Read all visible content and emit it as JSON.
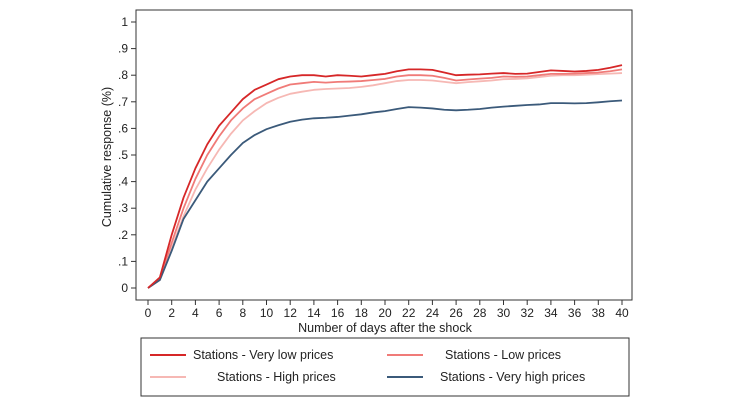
{
  "chart_data": {
    "type": "line",
    "xlabel": "Number of days after the shock",
    "ylabel": "Cumulative response (%)",
    "xlim": [
      0,
      40
    ],
    "ylim": [
      0,
      1
    ],
    "x_ticks": [
      0,
      2,
      4,
      6,
      8,
      10,
      12,
      14,
      16,
      18,
      20,
      22,
      24,
      26,
      28,
      30,
      32,
      34,
      36,
      38,
      40
    ],
    "y_ticks": [
      0,
      0.1,
      0.2,
      0.3,
      0.4,
      0.5,
      0.6,
      0.7,
      0.8,
      0.9,
      1
    ],
    "y_tick_labels": [
      "0",
      ".1",
      ".2",
      ".3",
      ".4",
      ".5",
      ".6",
      ".7",
      ".8",
      ".9",
      "1"
    ],
    "grid": false,
    "legend_position": "bottom",
    "x": [
      0,
      1,
      2,
      3,
      4,
      5,
      6,
      7,
      8,
      9,
      10,
      11,
      12,
      13,
      14,
      15,
      16,
      17,
      18,
      19,
      20,
      21,
      22,
      23,
      24,
      25,
      26,
      27,
      28,
      29,
      30,
      31,
      32,
      33,
      34,
      35,
      36,
      37,
      38,
      39,
      40
    ],
    "series": [
      {
        "name": "Stations - Very low prices",
        "color": "#d62728",
        "values": [
          0.0,
          0.04,
          0.2,
          0.34,
          0.45,
          0.54,
          0.61,
          0.66,
          0.71,
          0.745,
          0.765,
          0.785,
          0.795,
          0.8,
          0.8,
          0.795,
          0.8,
          0.798,
          0.795,
          0.8,
          0.805,
          0.815,
          0.822,
          0.822,
          0.82,
          0.81,
          0.8,
          0.802,
          0.803,
          0.806,
          0.808,
          0.805,
          0.806,
          0.812,
          0.818,
          0.816,
          0.814,
          0.816,
          0.82,
          0.828,
          0.838
        ]
      },
      {
        "name": "Stations - Low prices",
        "color": "#f07b78",
        "values": [
          0.0,
          0.035,
          0.17,
          0.3,
          0.41,
          0.5,
          0.57,
          0.63,
          0.675,
          0.71,
          0.73,
          0.75,
          0.765,
          0.77,
          0.775,
          0.772,
          0.775,
          0.776,
          0.778,
          0.782,
          0.786,
          0.795,
          0.8,
          0.8,
          0.798,
          0.79,
          0.78,
          0.784,
          0.787,
          0.79,
          0.795,
          0.794,
          0.795,
          0.8,
          0.805,
          0.805,
          0.806,
          0.808,
          0.81,
          0.815,
          0.822
        ]
      },
      {
        "name": "Stations - High prices",
        "color": "#f6b8b4",
        "values": [
          0.0,
          0.03,
          0.15,
          0.27,
          0.37,
          0.45,
          0.52,
          0.58,
          0.63,
          0.665,
          0.695,
          0.715,
          0.73,
          0.738,
          0.745,
          0.748,
          0.75,
          0.752,
          0.756,
          0.762,
          0.77,
          0.778,
          0.782,
          0.782,
          0.78,
          0.775,
          0.77,
          0.774,
          0.777,
          0.78,
          0.785,
          0.786,
          0.788,
          0.793,
          0.798,
          0.8,
          0.8,
          0.802,
          0.804,
          0.806,
          0.808
        ]
      },
      {
        "name": "Stations - Very high prices",
        "color": "#3b5a7a",
        "values": [
          0.0,
          0.03,
          0.14,
          0.26,
          0.33,
          0.4,
          0.45,
          0.5,
          0.545,
          0.575,
          0.597,
          0.612,
          0.625,
          0.633,
          0.638,
          0.64,
          0.643,
          0.648,
          0.653,
          0.66,
          0.665,
          0.673,
          0.68,
          0.678,
          0.675,
          0.67,
          0.668,
          0.67,
          0.673,
          0.678,
          0.682,
          0.685,
          0.688,
          0.69,
          0.695,
          0.695,
          0.694,
          0.695,
          0.698,
          0.702,
          0.705
        ]
      }
    ]
  }
}
